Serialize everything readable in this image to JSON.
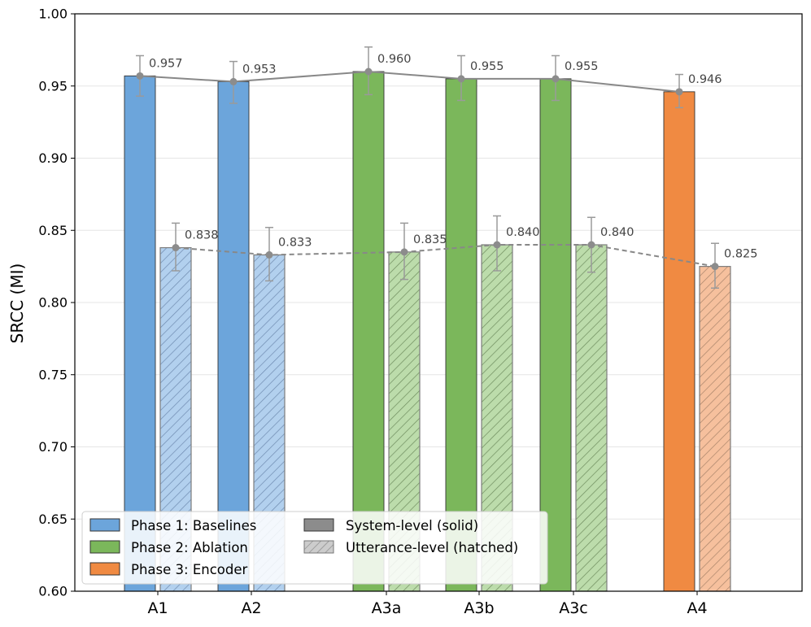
{
  "chart_data": {
    "type": "bar",
    "ylabel": "SRCC (MI)",
    "ylim": [
      0.6,
      1.0
    ],
    "yticks": [
      "0.60",
      "0.65",
      "0.70",
      "0.75",
      "0.80",
      "0.85",
      "0.90",
      "0.95",
      "1.00"
    ],
    "grid": "horizontal",
    "legend_position": "lower-left",
    "categories": [
      "A1",
      "A2",
      "A3a",
      "A3b",
      "A3c",
      "A4"
    ],
    "phase": [
      1,
      1,
      2,
      2,
      2,
      3
    ],
    "phases": [
      {
        "name": "Phase 1: Baselines",
        "color": "#6ca5db",
        "light": "#b2d0ee"
      },
      {
        "name": "Phase 2: Ablation",
        "color": "#7bb75b",
        "light": "#bcdcab"
      },
      {
        "name": "Phase 3: Encoder",
        "color": "#f08a42",
        "light": "#f6c09d"
      }
    ],
    "series": [
      {
        "name": "System-level (solid)",
        "values": [
          0.957,
          0.953,
          0.96,
          0.955,
          0.955,
          0.946
        ],
        "labels": [
          "0.957",
          "0.953",
          "0.960",
          "0.955",
          "0.955",
          "0.946"
        ],
        "err_low": [
          0.943,
          0.938,
          0.944,
          0.94,
          0.94,
          0.935
        ],
        "err_high": [
          0.971,
          0.967,
          0.977,
          0.971,
          0.971,
          0.958
        ]
      },
      {
        "name": "Utterance-level (hatched)",
        "values": [
          0.838,
          0.833,
          0.835,
          0.84,
          0.84,
          0.825
        ],
        "labels": [
          "0.838",
          "0.833",
          "0.835",
          "0.840",
          "0.840",
          "0.825"
        ],
        "err_low": [
          0.822,
          0.815,
          0.816,
          0.822,
          0.821,
          0.81
        ],
        "err_high": [
          0.855,
          0.852,
          0.855,
          0.86,
          0.859,
          0.841
        ]
      }
    ],
    "colors": {
      "trend": "#888888",
      "marker": "#8c8c8c",
      "errbar": "#9a9a9a",
      "grid": "#e6e6e6"
    }
  }
}
